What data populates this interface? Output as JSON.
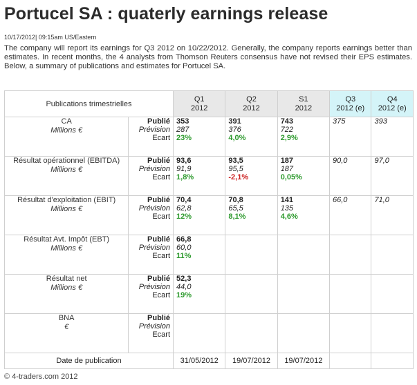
{
  "title": "Portucel SA : quaterly earnings release",
  "dateline": "10/17/2012| 09:15am US/Eastern",
  "intro": "The company will report its earnings for Q3 2012 on 10/22/2012. Generally, the company reports earnings better than estimates. In recent months, the 4 analysts from Thomson Reuters consensus have not revised their EPS estimates. Below, a summary of publications and estimates for Portucel SA.",
  "table": {
    "header_label": "Publications trimestrielles",
    "periods": [
      {
        "line1": "Q1",
        "line2": "2012"
      },
      {
        "line1": "Q2",
        "line2": "2012"
      },
      {
        "line1": "S1",
        "line2": "2012"
      },
      {
        "line1": "Q3",
        "line2": "2012 (e)"
      },
      {
        "line1": "Q4",
        "line2": "2012 (e)"
      }
    ],
    "kind_labels": {
      "published": "Publié",
      "forecast": "Prévision",
      "gap": "Ecart"
    },
    "rows": [
      {
        "label": "CA",
        "unit": "Millions €",
        "cols": [
          {
            "pub": "353",
            "prev": "287",
            "gap": "23%",
            "gap_sign": "pos"
          },
          {
            "pub": "391",
            "prev": "376",
            "gap": "4,0%",
            "gap_sign": "pos"
          },
          {
            "pub": "743",
            "prev": "722",
            "gap": "2,9%",
            "gap_sign": "pos"
          }
        ],
        "estimates": [
          "375",
          "393"
        ]
      },
      {
        "label": "Résultat opérationnel (EBITDA)",
        "unit": "Millions €",
        "cols": [
          {
            "pub": "93,6",
            "prev": "91,9",
            "gap": "1,8%",
            "gap_sign": "pos"
          },
          {
            "pub": "93,5",
            "prev": "95,5",
            "gap": "-2,1%",
            "gap_sign": "neg"
          },
          {
            "pub": "187",
            "prev": "187",
            "gap": "0,05%",
            "gap_sign": "pos"
          }
        ],
        "estimates": [
          "90,0",
          "97,0"
        ]
      },
      {
        "label": "Résultat d'exploitation (EBIT)",
        "unit": "Millions €",
        "cols": [
          {
            "pub": "70,4",
            "prev": "62,8",
            "gap": "12%",
            "gap_sign": "pos"
          },
          {
            "pub": "70,8",
            "prev": "65,5",
            "gap": "8,1%",
            "gap_sign": "pos"
          },
          {
            "pub": "141",
            "prev": "135",
            "gap": "4,6%",
            "gap_sign": "pos"
          }
        ],
        "estimates": [
          "66,0",
          "71,0"
        ]
      },
      {
        "label": "Résultat Avt. Impôt (EBT)",
        "unit": "Millions €",
        "cols": [
          {
            "pub": "66,8",
            "prev": "60,0",
            "gap": "11%",
            "gap_sign": "pos"
          }
        ],
        "estimates": []
      },
      {
        "label": "Résultat net",
        "unit": "Millions €",
        "cols": [
          {
            "pub": "52,3",
            "prev": "44,0",
            "gap": "19%",
            "gap_sign": "pos"
          }
        ],
        "estimates": []
      },
      {
        "label": "BNA",
        "unit": "€",
        "cols": [],
        "estimates": []
      }
    ],
    "publication_label": "Date de publication",
    "publication_dates": [
      "31/05/2012",
      "19/07/2012",
      "19/07/2012",
      "",
      ""
    ]
  },
  "footer": "© 4-traders.com 2012",
  "colors": {
    "positive": "#2e9a2e",
    "negative": "#cc1f1f",
    "past_header": "#e8e8e8",
    "estimate_header": "#d4f4f8"
  }
}
